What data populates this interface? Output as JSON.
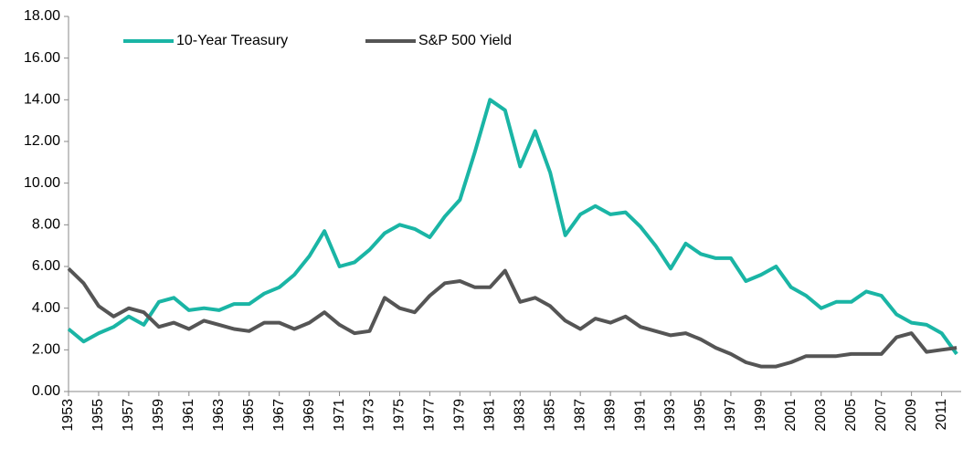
{
  "chart_data": {
    "type": "line",
    "x": [
      1953,
      1954,
      1955,
      1956,
      1957,
      1958,
      1959,
      1960,
      1961,
      1962,
      1963,
      1964,
      1965,
      1966,
      1967,
      1968,
      1969,
      1970,
      1971,
      1972,
      1973,
      1974,
      1975,
      1976,
      1977,
      1978,
      1979,
      1980,
      1981,
      1982,
      1983,
      1984,
      1985,
      1986,
      1987,
      1988,
      1989,
      1990,
      1991,
      1992,
      1993,
      1994,
      1995,
      1996,
      1997,
      1998,
      1999,
      2000,
      2001,
      2002,
      2003,
      2004,
      2005,
      2006,
      2007,
      2008,
      2009,
      2010,
      2011,
      2012
    ],
    "series": [
      {
        "name": "10-Year Treasury",
        "color": "#1ab5a5",
        "values": [
          3.0,
          2.4,
          2.8,
          3.1,
          3.6,
          3.2,
          4.3,
          4.5,
          3.9,
          4.0,
          3.9,
          4.2,
          4.2,
          4.7,
          5.0,
          5.6,
          6.5,
          7.7,
          6.0,
          6.2,
          6.8,
          7.6,
          8.0,
          7.8,
          7.4,
          8.4,
          9.2,
          11.5,
          14.0,
          13.5,
          10.8,
          12.5,
          10.5,
          7.5,
          8.5,
          8.9,
          8.5,
          8.6,
          7.9,
          7.0,
          5.9,
          7.1,
          6.6,
          6.4,
          6.4,
          5.3,
          5.6,
          6.0,
          5.0,
          4.6,
          4.0,
          4.3,
          4.3,
          4.8,
          4.6,
          3.7,
          3.3,
          3.2,
          2.8,
          1.8
        ]
      },
      {
        "name": "S&P 500 Yield",
        "color": "#555555",
        "values": [
          5.9,
          5.2,
          4.1,
          3.6,
          4.0,
          3.8,
          3.1,
          3.3,
          3.0,
          3.4,
          3.2,
          3.0,
          2.9,
          3.3,
          3.3,
          3.0,
          3.3,
          3.8,
          3.2,
          2.8,
          2.9,
          4.5,
          4.0,
          3.8,
          4.6,
          5.2,
          5.3,
          5.0,
          5.0,
          5.8,
          4.3,
          4.5,
          4.1,
          3.4,
          3.0,
          3.5,
          3.3,
          3.6,
          3.1,
          2.9,
          2.7,
          2.8,
          2.5,
          2.1,
          1.8,
          1.4,
          1.2,
          1.2,
          1.4,
          1.7,
          1.7,
          1.7,
          1.8,
          1.8,
          1.8,
          2.6,
          2.8,
          1.9,
          2.0,
          2.1
        ]
      }
    ],
    "xlim": [
      1953,
      2012.3
    ],
    "xticks": [
      1953,
      1955,
      1957,
      1959,
      1961,
      1963,
      1965,
      1967,
      1969,
      1971,
      1973,
      1975,
      1977,
      1979,
      1981,
      1983,
      1985,
      1987,
      1989,
      1991,
      1993,
      1995,
      1997,
      1999,
      2001,
      2003,
      2005,
      2007,
      2009,
      2011
    ],
    "ylim": [
      0,
      18
    ],
    "yticks": [
      {
        "value": 0,
        "label": "0.00"
      },
      {
        "value": 2,
        "label": "2.00"
      },
      {
        "value": 4,
        "label": "4.00"
      },
      {
        "value": 6,
        "label": "6.00"
      },
      {
        "value": 8,
        "label": "8.00"
      },
      {
        "value": 10,
        "label": "10.00"
      },
      {
        "value": 12,
        "label": "12.00"
      },
      {
        "value": 14,
        "label": "14.00"
      },
      {
        "value": 16,
        "label": "16.00"
      },
      {
        "value": 18,
        "label": "18.00"
      }
    ],
    "legend": "top"
  }
}
